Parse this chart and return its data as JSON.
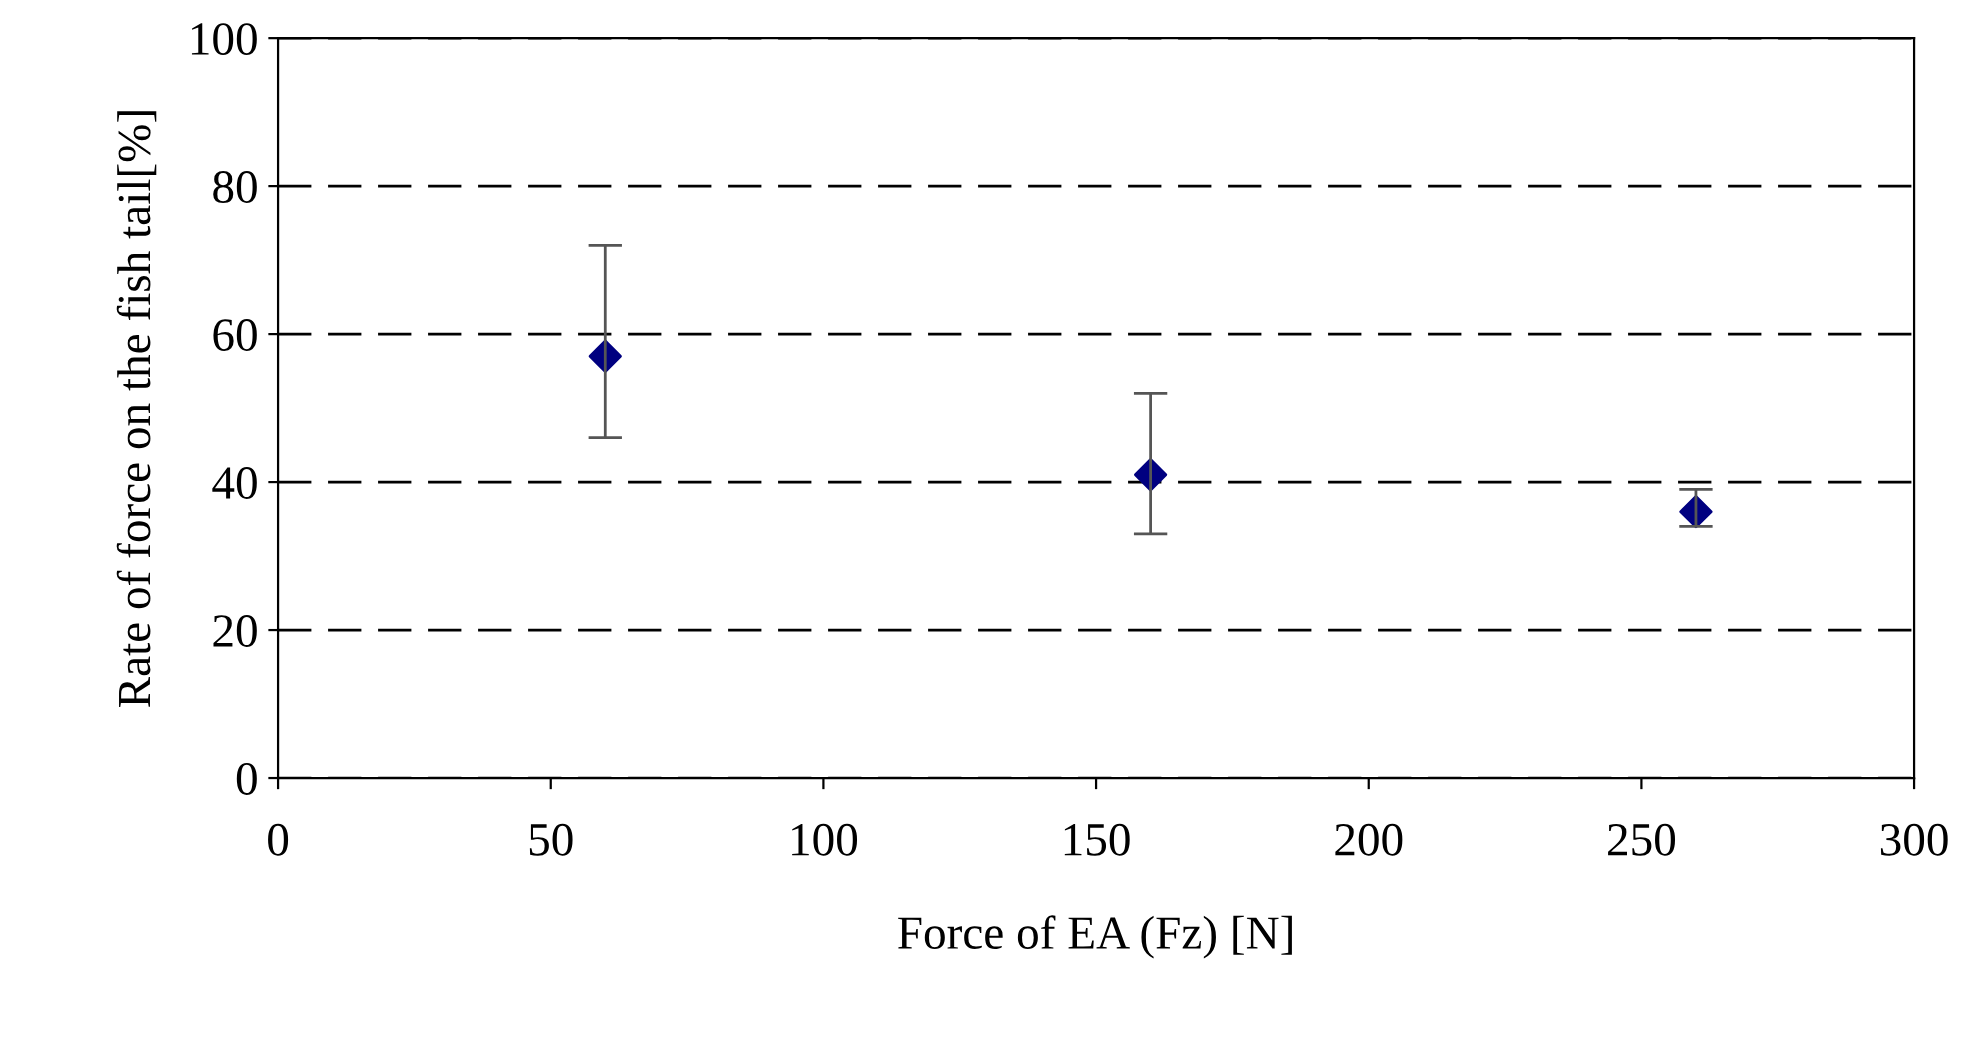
{
  "chart_data": {
    "type": "scatter",
    "xlabel": "Force of EA (Fz) [N]",
    "ylabel": "Rate of force on the fish tail[%]",
    "x": [
      60,
      160,
      260
    ],
    "series": [
      {
        "color": "#000080",
        "values": [
          57,
          41,
          36
        ],
        "errors": [
          [
            46,
            72
          ],
          [
            33,
            52
          ],
          [
            34,
            39
          ]
        ]
      }
    ],
    "xlim": [
      0,
      300
    ],
    "xticks": [
      0,
      50,
      100,
      150,
      200,
      250,
      300
    ],
    "ylim": [
      0,
      100
    ],
    "yticks": [
      0,
      20,
      40,
      60,
      80,
      100
    ],
    "grid": "y",
    "line_style": "dashed",
    "marker": "diamond"
  }
}
